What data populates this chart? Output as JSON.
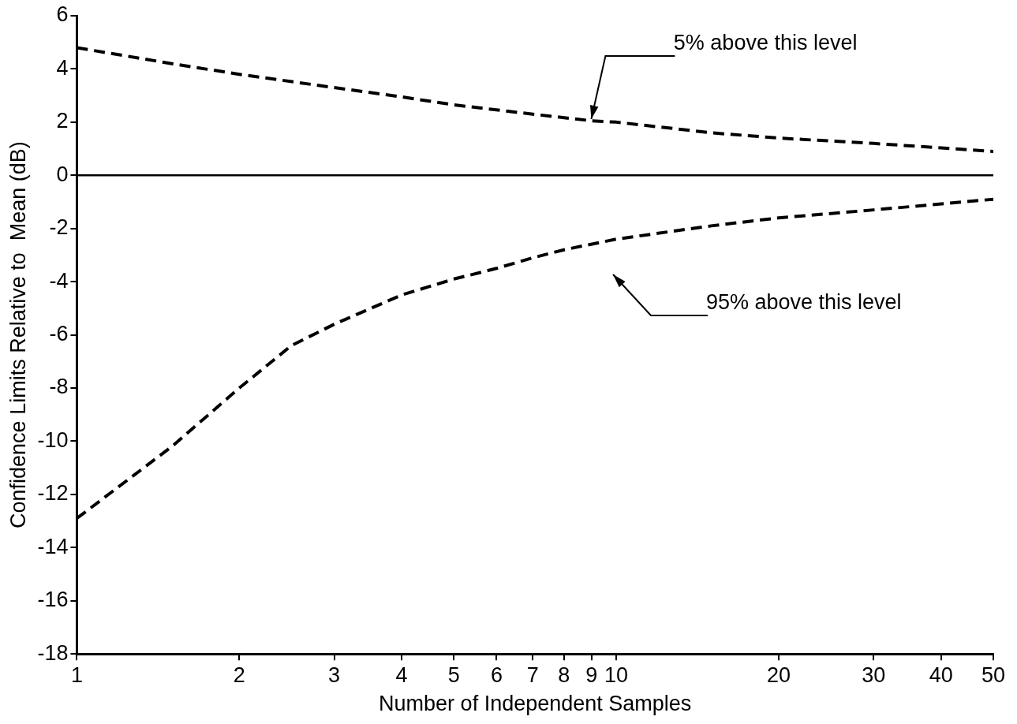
{
  "chart_data": {
    "type": "line",
    "xlabel": "Number of Independent Samples",
    "ylabel": "Confidence Limits Relative to  Mean (dB)",
    "log": "x",
    "xlim": [
      1,
      50
    ],
    "ylim": [
      -18,
      6
    ],
    "xticks": [
      1,
      2,
      3,
      4,
      5,
      6,
      7,
      8,
      9,
      10,
      20,
      30,
      40,
      50
    ],
    "yticks": [
      -18,
      -16,
      -14,
      -12,
      -10,
      -8,
      -6,
      -4,
      -2,
      0,
      2,
      4,
      6
    ],
    "grid": false,
    "legend": false,
    "marker": "none",
    "line_style": "dashed",
    "series": [
      {
        "color": "#000000",
        "x": [
          1,
          1.5,
          2,
          3,
          4,
          5,
          7,
          9,
          10,
          15,
          20,
          30,
          50
        ],
        "values": [
          4.8,
          4.2,
          3.8,
          3.3,
          2.95,
          2.65,
          2.3,
          2.05,
          2.0,
          1.6,
          1.4,
          1.2,
          0.9
        ]
      },
      {
        "color": "#000000",
        "x": [
          1,
          1.5,
          2,
          2.5,
          3,
          4,
          5,
          6,
          7,
          8,
          10,
          15,
          20,
          30,
          50
        ],
        "values": [
          -12.9,
          -10.2,
          -8.0,
          -6.4,
          -5.6,
          -4.5,
          -3.9,
          -3.5,
          -3.1,
          -2.8,
          -2.4,
          -1.9,
          -1.6,
          -1.3,
          -0.9
        ]
      }
    ],
    "ref_lines": [
      {
        "axis": "y",
        "value": 0,
        "color": "#000000",
        "line_style": "solid"
      }
    ],
    "annotations": [
      {
        "text": "5% above this level",
        "x": 9,
        "y": 2.1
      },
      "95% above this level"
    ]
  }
}
